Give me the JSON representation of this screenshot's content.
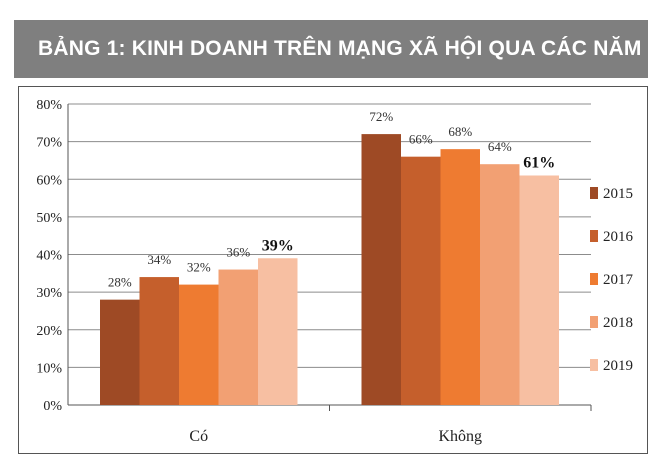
{
  "header": {
    "title": "BẢNG 1: KINH DOANH TRÊN MẠNG XÃ HỘI QUA CÁC NĂM"
  },
  "chart_data": {
    "type": "bar",
    "categories": [
      "Có",
      "Không"
    ],
    "series": [
      {
        "name": "2015",
        "values": [
          28,
          72
        ],
        "color": "#9e4a25"
      },
      {
        "name": "2016",
        "values": [
          34,
          66
        ],
        "color": "#c55f2c"
      },
      {
        "name": "2017",
        "values": [
          32,
          68
        ],
        "color": "#ee7b31"
      },
      {
        "name": "2018",
        "values": [
          36,
          64
        ],
        "color": "#f2a073"
      },
      {
        "name": "2019",
        "values": [
          39,
          61
        ],
        "color": "#f7bfa2"
      }
    ],
    "data_labels": [
      [
        "28%",
        "72%"
      ],
      [
        "34%",
        "66%"
      ],
      [
        "32%",
        "68%"
      ],
      [
        "36%",
        "64%"
      ],
      [
        "39%",
        "61%"
      ]
    ],
    "emphasized_series": "2019",
    "ylim": [
      0,
      80
    ],
    "ytick_step": 10,
    "ytick_labels": [
      "0%",
      "10%",
      "20%",
      "30%",
      "40%",
      "50%",
      "60%",
      "70%",
      "80%"
    ],
    "xlabel": "",
    "ylabel": "",
    "grid": true,
    "legend_position": "right"
  }
}
